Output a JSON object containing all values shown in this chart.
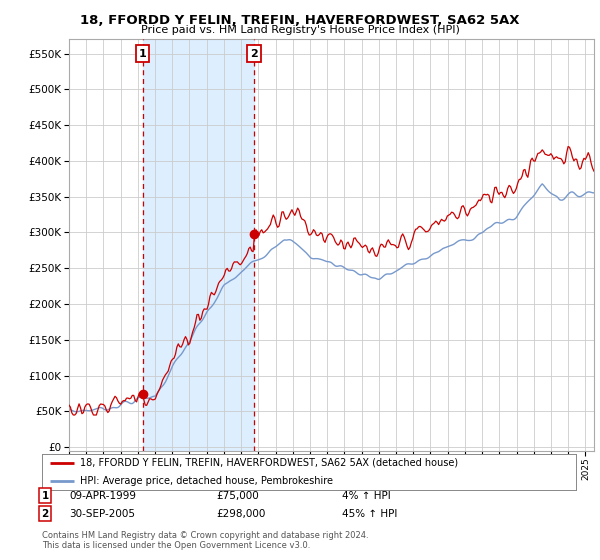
{
  "title": "18, FFORDD Y FELIN, TREFIN, HAVERFORDWEST, SA62 5AX",
  "subtitle": "Price paid vs. HM Land Registry's House Price Index (HPI)",
  "yticks": [
    0,
    50000,
    100000,
    150000,
    200000,
    250000,
    300000,
    350000,
    400000,
    450000,
    500000,
    550000
  ],
  "purchase1": {
    "date_num": 1999.27,
    "price": 75000,
    "label": "1",
    "text": "09-APR-1999",
    "amount": "£75,000",
    "hpi_pct": "4% ↑ HPI"
  },
  "purchase2": {
    "date_num": 2005.75,
    "price": 298000,
    "label": "2",
    "text": "30-SEP-2005",
    "amount": "£298,000",
    "hpi_pct": "45% ↑ HPI"
  },
  "legend_line1": "18, FFORDD Y FELIN, TREFIN, HAVERFORDWEST, SA62 5AX (detached house)",
  "legend_line2": "HPI: Average price, detached house, Pembrokeshire",
  "footer": "Contains HM Land Registry data © Crown copyright and database right 2024.\nThis data is licensed under the Open Government Licence v3.0.",
  "line_color_red": "#cc0000",
  "line_color_blue": "#7799cc",
  "shade_color": "#ddeeff",
  "bg_color": "#ffffff",
  "grid_color": "#cccccc",
  "xmin": 1995.0,
  "xmax": 2025.5,
  "ylim_bottom": -5000,
  "ylim_top": 570000
}
